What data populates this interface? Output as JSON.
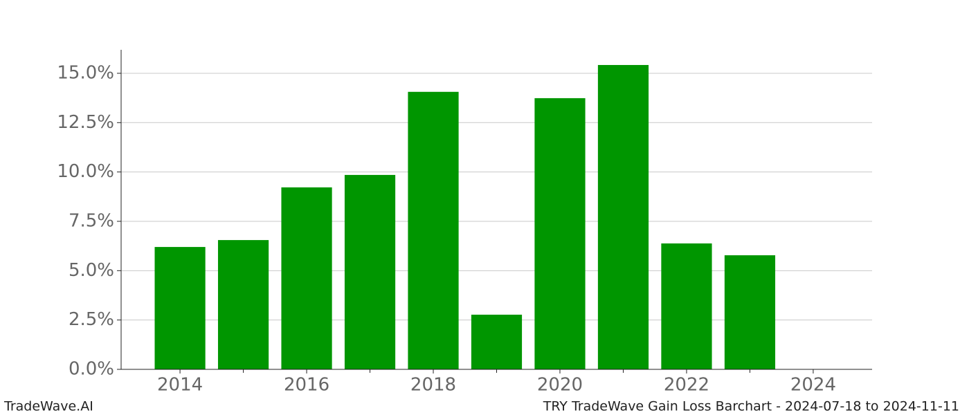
{
  "chart_data": {
    "type": "bar",
    "title": "TRY TradeWave Gain Loss Barchart - 2024-07-18 to 2024-11-11",
    "watermark": "TradeWave.AI",
    "x": [
      2014,
      2015,
      2016,
      2017,
      2018,
      2019,
      2020,
      2021,
      2022,
      2023
    ],
    "values": [
      6.2,
      6.55,
      9.22,
      9.85,
      14.06,
      2.77,
      13.74,
      15.42,
      6.38,
      5.78
    ],
    "color": "#009600",
    "bar_width": 0.8,
    "xlim": [
      2013.07,
      2024.93
    ],
    "xticks": [
      2014,
      2016,
      2018,
      2020,
      2022,
      2024
    ],
    "xminorticks": [
      2015,
      2017,
      2019,
      2021,
      2023
    ],
    "ylim": [
      0,
      16.19
    ],
    "yticks": [
      {
        "value": 0,
        "label": "0.0%"
      },
      {
        "value": 2.5,
        "label": "2.5%"
      },
      {
        "value": 5,
        "label": "5.0%"
      },
      {
        "value": 7.5,
        "label": "7.5%"
      },
      {
        "value": 10,
        "label": "10.0%"
      },
      {
        "value": 12.5,
        "label": "12.5%"
      },
      {
        "value": 15,
        "label": "15.0%"
      }
    ],
    "grid": true
  }
}
